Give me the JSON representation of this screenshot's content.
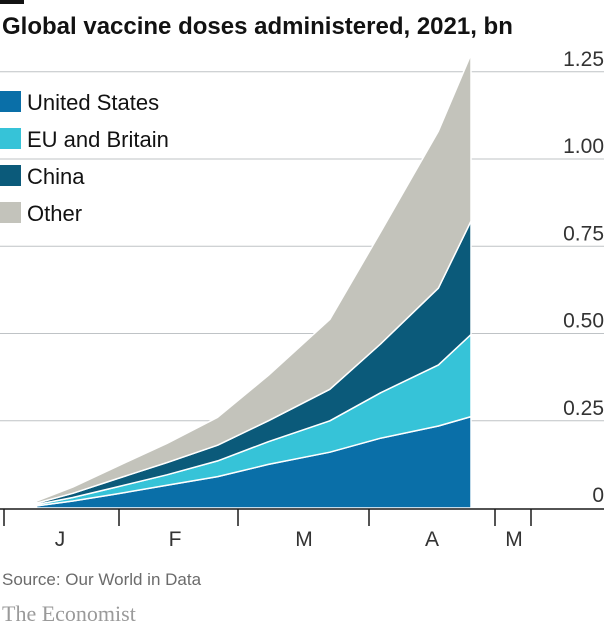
{
  "chart_data": {
    "type": "area",
    "title": "Global vaccine doses administered, 2021, bn",
    "xlabel": "",
    "ylabel": "",
    "ylim": [
      0,
      1.3
    ],
    "yticks": [
      "0",
      "0.25",
      "0.50",
      "0.75",
      "1.00",
      "1.25"
    ],
    "ytick_values": [
      0,
      0.25,
      0.5,
      0.75,
      1.0,
      1.25
    ],
    "months": [
      "J",
      "F",
      "M",
      "A",
      "M"
    ],
    "grid": true,
    "stacked": true,
    "legend_position": "top-left",
    "x": [
      "2021-01-10",
      "2021-01-20",
      "2021-02-01",
      "2021-02-15",
      "2021-03-01",
      "2021-03-15",
      "2021-04-01",
      "2021-04-15",
      "2021-05-01",
      "2021-05-10"
    ],
    "series": [
      {
        "name": "United States",
        "color": "#0a6fa8",
        "values": [
          0.006,
          0.02,
          0.04,
          0.065,
          0.09,
          0.125,
          0.16,
          0.2,
          0.235,
          0.262
        ]
      },
      {
        "name": "EU and Britain",
        "color": "#36c3d8",
        "values": [
          0.004,
          0.01,
          0.02,
          0.03,
          0.045,
          0.065,
          0.09,
          0.13,
          0.175,
          0.235
        ]
      },
      {
        "name": "China",
        "color": "#0b5a7a",
        "values": [
          0.004,
          0.012,
          0.023,
          0.035,
          0.045,
          0.06,
          0.09,
          0.14,
          0.22,
          0.325
        ]
      },
      {
        "name": "Other",
        "color": "#c3c3bb",
        "values": [
          0.006,
          0.018,
          0.035,
          0.055,
          0.08,
          0.13,
          0.2,
          0.32,
          0.45,
          0.478
        ]
      }
    ]
  },
  "footer": {
    "source": "Source: Our World in Data",
    "brand": "The Economist"
  }
}
